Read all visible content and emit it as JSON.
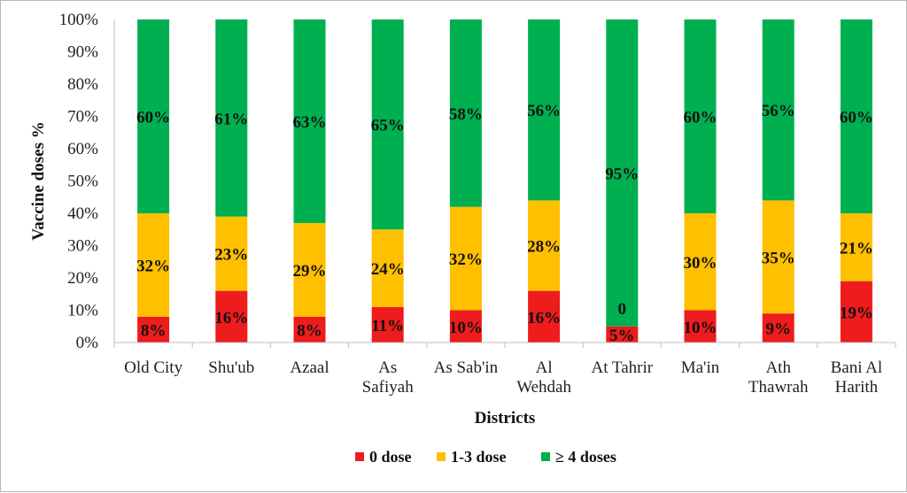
{
  "chart_data": {
    "type": "bar",
    "stacked": true,
    "title": "",
    "xlabel": "Districts",
    "ylabel": "Vaccine  doses %",
    "ylim": [
      0,
      100
    ],
    "yticks": [
      "0%",
      "10%",
      "20%",
      "30%",
      "40%",
      "50%",
      "60%",
      "70%",
      "80%",
      "90%",
      "100%"
    ],
    "categories": [
      [
        "Old City"
      ],
      [
        "Shu'ub"
      ],
      [
        "Azaal"
      ],
      [
        "As",
        "Safiyah"
      ],
      [
        "As Sab'in"
      ],
      [
        "Al",
        "Wehdah"
      ],
      [
        "At Tahrir"
      ],
      [
        "Ma'in"
      ],
      [
        "Ath",
        "Thawrah"
      ],
      [
        "Bani Al",
        "Harith"
      ]
    ],
    "series": [
      {
        "name": "0 dose",
        "color": "#ee1c1c",
        "values": [
          8,
          16,
          8,
          11,
          10,
          16,
          5,
          10,
          9,
          19
        ],
        "labels": [
          "8%",
          "16%",
          "8%",
          "11%",
          "10%",
          "16%",
          "5%",
          "10%",
          "9%",
          "19%"
        ]
      },
      {
        "name": "1-3 dose",
        "color": "#ffc000",
        "values": [
          32,
          23,
          29,
          24,
          32,
          28,
          0,
          30,
          35,
          21
        ],
        "labels": [
          "32%",
          "23%",
          "29%",
          "24%",
          "32%",
          "28%",
          "0",
          "30%",
          "35%",
          "21%"
        ]
      },
      {
        "name": "≥ 4 doses",
        "color": "#00b050",
        "values": [
          60,
          61,
          63,
          65,
          58,
          56,
          95,
          60,
          56,
          60
        ],
        "labels": [
          "60%",
          "61%",
          "63%",
          "65%",
          "58%",
          "56%",
          "95%",
          "60%",
          "56%",
          "60%"
        ]
      }
    ],
    "legend_position": "bottom",
    "grid": false
  }
}
